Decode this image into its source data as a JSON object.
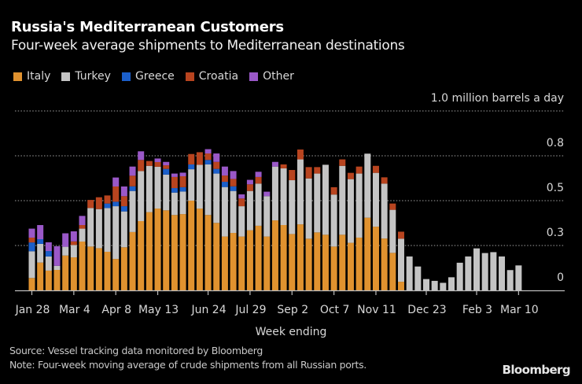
{
  "chart_data": {
    "type": "bar",
    "stacked": true,
    "title": "Russia's Mediterranean Customers",
    "subtitle": "Four-week average shipments to Mediterranean destinations",
    "xlabel": "Week ending",
    "ylabel": "million barrels a day",
    "ylim": [
      0,
      1.0
    ],
    "grid": true,
    "legend_position": "top-left",
    "y_ticks": [
      {
        "value": 0,
        "label": "0"
      },
      {
        "value": 0.25,
        "label": "0.3"
      },
      {
        "value": 0.5,
        "label": "0.5"
      },
      {
        "value": 0.75,
        "label": "0.8"
      },
      {
        "value": 1.0,
        "label": "1.0 million barrels a day"
      }
    ],
    "x_ticks": [
      {
        "index": 0,
        "label": "Jan 28"
      },
      {
        "index": 5,
        "label": "Mar 4"
      },
      {
        "index": 10,
        "label": "Apr 8"
      },
      {
        "index": 15,
        "label": "May 13"
      },
      {
        "index": 21,
        "label": "Jun 24"
      },
      {
        "index": 26,
        "label": "Jul 29"
      },
      {
        "index": 31,
        "label": "Sep 2"
      },
      {
        "index": 36,
        "label": "Oct 7"
      },
      {
        "index": 41,
        "label": "Nov 11"
      },
      {
        "index": 47,
        "label": "Dec 23"
      },
      {
        "index": 53,
        "label": "Feb 3"
      },
      {
        "index": 58,
        "label": "Mar 10"
      }
    ],
    "series": [
      {
        "name": "Italy",
        "color": "#e0922f",
        "values": [
          0.069,
          0.155,
          0.11,
          0.114,
          0.194,
          0.184,
          0.272,
          0.244,
          0.235,
          0.215,
          0.175,
          0.24,
          0.325,
          0.386,
          0.436,
          0.456,
          0.446,
          0.42,
          0.425,
          0.5,
          0.456,
          0.42,
          0.376,
          0.3,
          0.32,
          0.3,
          0.335,
          0.36,
          0.3,
          0.39,
          0.364,
          0.314,
          0.368,
          0.288,
          0.323,
          0.31,
          0.244,
          0.31,
          0.265,
          0.294,
          0.405,
          0.355,
          0.289,
          0.209,
          0.048,
          0,
          0,
          0,
          0,
          0,
          0,
          0,
          0,
          0,
          0,
          0,
          0,
          0,
          0
        ]
      },
      {
        "name": "Turkey",
        "color": "#c4c4c4",
        "values": [
          0.149,
          0.104,
          0.079,
          0.023,
          0.049,
          0.069,
          0.072,
          0.215,
          0.218,
          0.244,
          0.294,
          0.2,
          0.229,
          0.279,
          0.258,
          0.233,
          0.199,
          0.125,
          0.126,
          0.175,
          0.244,
          0.282,
          0.275,
          0.276,
          0.234,
          0.169,
          0.219,
          0.235,
          0.225,
          0.3,
          0.316,
          0.3,
          0.362,
          0.336,
          0.328,
          0.39,
          0.29,
          0.384,
          0.355,
          0.357,
          0.357,
          0.3,
          0.306,
          0.24,
          0.24,
          0.189,
          0.133,
          0.063,
          0.053,
          0.042,
          0.073,
          0.154,
          0.189,
          0.234,
          0.208,
          0.213,
          0.189,
          0.113,
          0.139
        ]
      },
      {
        "name": "Greece",
        "color": "#1b5fca",
        "values": [
          0.049,
          0.026,
          0.03,
          0,
          0,
          0,
          0,
          0,
          0,
          0.025,
          0.025,
          0.029,
          0.026,
          0,
          0,
          0,
          0.032,
          0.025,
          0.024,
          0.027,
          0,
          0.025,
          0.026,
          0.029,
          0.026,
          0,
          0,
          0,
          0,
          0,
          0,
          0,
          0,
          0,
          0,
          0,
          0,
          0,
          0,
          0,
          0,
          0,
          0,
          0,
          0,
          0,
          0,
          0,
          0,
          0,
          0,
          0,
          0,
          0,
          0,
          0,
          0,
          0,
          0
        ]
      },
      {
        "name": "Croatia",
        "color": "#b8441f",
        "values": [
          0.027,
          0,
          0,
          0,
          0,
          0.02,
          0.02,
          0.045,
          0.066,
          0.045,
          0.085,
          0.056,
          0.059,
          0.062,
          0.027,
          0.026,
          0.02,
          0.062,
          0.061,
          0.058,
          0.07,
          0.036,
          0.039,
          0.035,
          0.041,
          0.043,
          0.037,
          0.037,
          0,
          0,
          0.022,
          0.057,
          0.055,
          0.063,
          0.036,
          0,
          0.041,
          0.036,
          0.035,
          0.039,
          0,
          0.039,
          0.035,
          0.035,
          0.039,
          0,
          0,
          0,
          0,
          0,
          0,
          0,
          0,
          0,
          0,
          0,
          0,
          0,
          0
        ]
      },
      {
        "name": "Other",
        "color": "#9a58c8",
        "values": [
          0.05,
          0.079,
          0.049,
          0.109,
          0.075,
          0.056,
          0.051,
          0,
          0,
          0,
          0.05,
          0.054,
          0.051,
          0.048,
          0,
          0.02,
          0.019,
          0.019,
          0.02,
          0,
          0,
          0.024,
          0.047,
          0.05,
          0.044,
          0.023,
          0.025,
          0.029,
          0.025,
          0.026,
          0,
          0,
          0,
          0,
          0,
          0,
          0,
          0,
          0,
          0,
          0,
          0,
          0,
          0,
          0,
          0,
          0,
          0,
          0,
          0,
          0,
          0,
          0,
          0,
          0,
          0,
          0,
          0,
          0
        ]
      }
    ]
  },
  "legend": [
    {
      "label": "Italy",
      "color": "#e0922f"
    },
    {
      "label": "Turkey",
      "color": "#c4c4c4"
    },
    {
      "label": "Greece",
      "color": "#1b5fca"
    },
    {
      "label": "Croatia",
      "color": "#b8441f"
    },
    {
      "label": "Other",
      "color": "#9a58c8"
    }
  ],
  "footer": {
    "source": "Source: Vessel tracking data monitored by Bloomberg",
    "note": "Note: Four-week moving average of crude shipments from all Russian ports.",
    "logo": "Bloomberg"
  }
}
